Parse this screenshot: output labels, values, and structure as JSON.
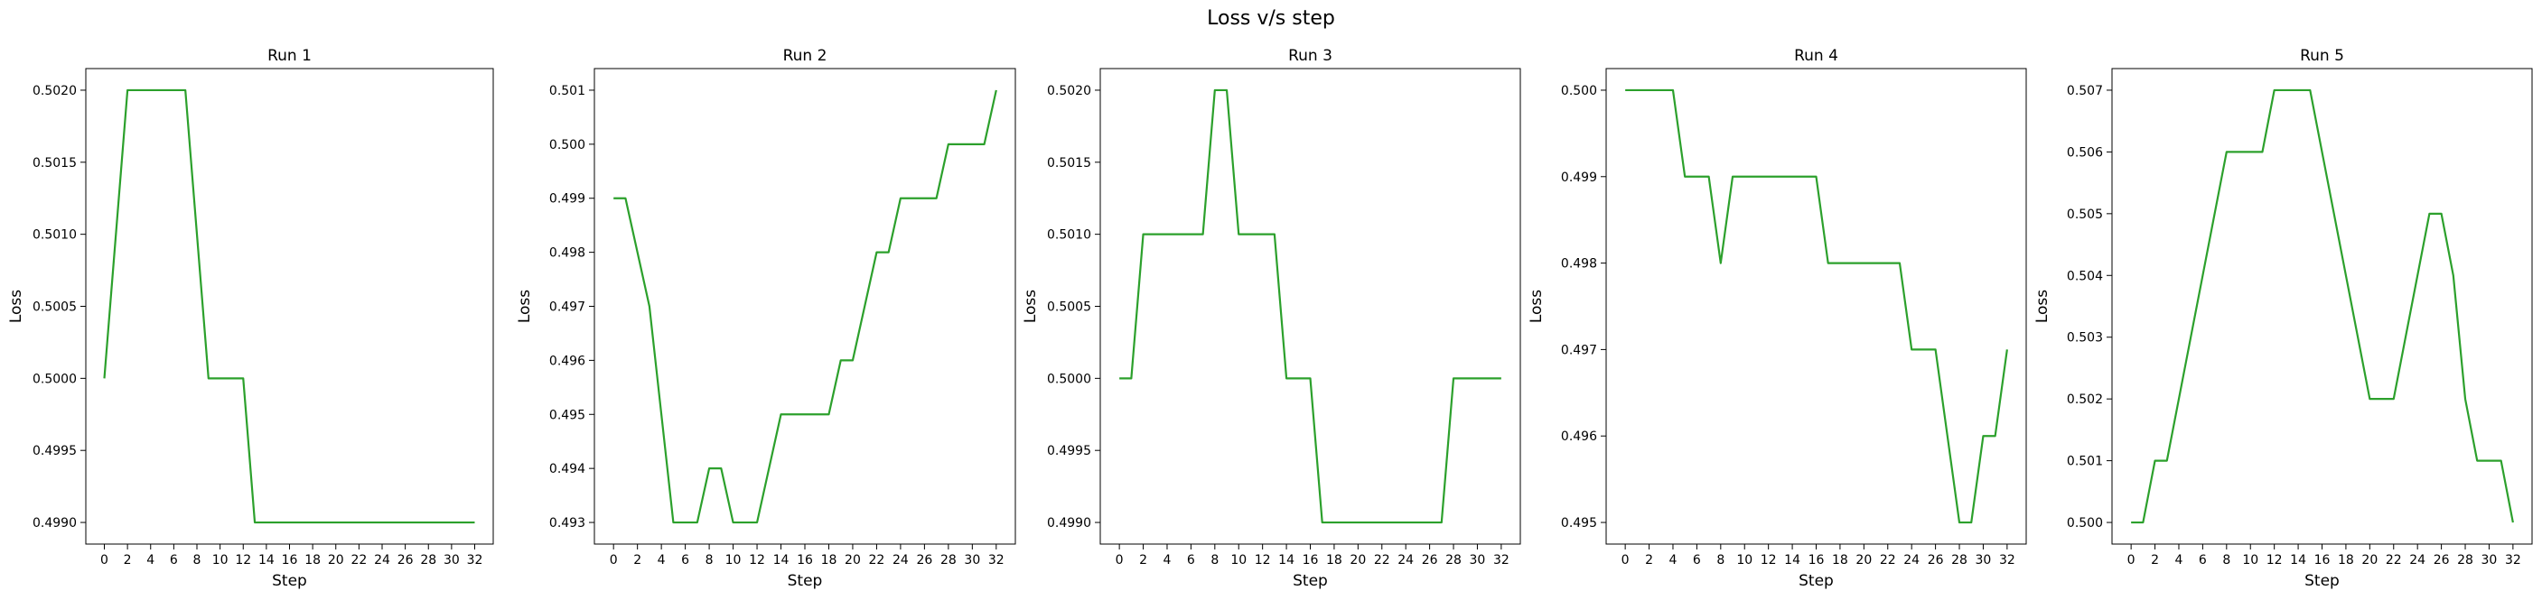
{
  "suptitle": "Loss v/s step",
  "line_color": "#2ca02c",
  "chart_data": [
    {
      "type": "line",
      "title": "Run 1",
      "xlabel": "Step",
      "ylabel": "Loss",
      "xlim": [
        -1.6,
        33.6
      ],
      "ylim": [
        0.49885,
        0.50215
      ],
      "xticks": [
        0,
        2,
        4,
        6,
        8,
        10,
        12,
        14,
        16,
        18,
        20,
        22,
        24,
        26,
        28,
        30,
        32
      ],
      "yticks": [
        0.499,
        0.4995,
        0.5,
        0.5005,
        0.501,
        0.5015,
        0.502
      ],
      "ytick_decimals": 4,
      "grid": false,
      "x": [
        0,
        1,
        2,
        3,
        4,
        5,
        6,
        7,
        8,
        9,
        10,
        11,
        12,
        13,
        14,
        15,
        16,
        17,
        18,
        19,
        20,
        21,
        22,
        23,
        24,
        25,
        26,
        27,
        28,
        29,
        30,
        31,
        32
      ],
      "values": [
        0.5,
        0.501,
        0.502,
        0.502,
        0.502,
        0.502,
        0.502,
        0.502,
        0.501,
        0.5,
        0.5,
        0.5,
        0.5,
        0.499,
        0.499,
        0.499,
        0.499,
        0.499,
        0.499,
        0.499,
        0.499,
        0.499,
        0.499,
        0.499,
        0.499,
        0.499,
        0.499,
        0.499,
        0.499,
        0.499,
        0.499,
        0.499,
        0.499
      ]
    },
    {
      "type": "line",
      "title": "Run 2",
      "xlabel": "Step",
      "ylabel": "Loss",
      "xlim": [
        -1.6,
        33.6
      ],
      "ylim": [
        0.4926,
        0.5014
      ],
      "xticks": [
        0,
        2,
        4,
        6,
        8,
        10,
        12,
        14,
        16,
        18,
        20,
        22,
        24,
        26,
        28,
        30,
        32
      ],
      "yticks": [
        0.493,
        0.494,
        0.495,
        0.496,
        0.497,
        0.498,
        0.499,
        0.5,
        0.501
      ],
      "ytick_decimals": 3,
      "grid": false,
      "x": [
        0,
        1,
        2,
        3,
        4,
        5,
        6,
        7,
        8,
        9,
        10,
        11,
        12,
        13,
        14,
        15,
        16,
        17,
        18,
        19,
        20,
        21,
        22,
        23,
        24,
        25,
        26,
        27,
        28,
        29,
        30,
        31,
        32
      ],
      "values": [
        0.499,
        0.499,
        0.498,
        0.497,
        0.495,
        0.493,
        0.493,
        0.493,
        0.494,
        0.494,
        0.493,
        0.493,
        0.493,
        0.494,
        0.495,
        0.495,
        0.495,
        0.495,
        0.495,
        0.496,
        0.496,
        0.497,
        0.498,
        0.498,
        0.499,
        0.499,
        0.499,
        0.499,
        0.5,
        0.5,
        0.5,
        0.5,
        0.501
      ]
    },
    {
      "type": "line",
      "title": "Run 3",
      "xlabel": "Step",
      "ylabel": "Loss",
      "xlim": [
        -1.6,
        33.6
      ],
      "ylim": [
        0.49885,
        0.50215
      ],
      "xticks": [
        0,
        2,
        4,
        6,
        8,
        10,
        12,
        14,
        16,
        18,
        20,
        22,
        24,
        26,
        28,
        30,
        32
      ],
      "yticks": [
        0.499,
        0.4995,
        0.5,
        0.5005,
        0.501,
        0.5015,
        0.502
      ],
      "ytick_decimals": 4,
      "grid": false,
      "x": [
        0,
        1,
        2,
        3,
        4,
        5,
        6,
        7,
        8,
        9,
        10,
        11,
        12,
        13,
        14,
        15,
        16,
        17,
        18,
        19,
        20,
        21,
        22,
        23,
        24,
        25,
        26,
        27,
        28,
        29,
        30,
        31,
        32
      ],
      "values": [
        0.5,
        0.5,
        0.501,
        0.501,
        0.501,
        0.501,
        0.501,
        0.501,
        0.502,
        0.502,
        0.501,
        0.501,
        0.501,
        0.501,
        0.5,
        0.5,
        0.5,
        0.499,
        0.499,
        0.499,
        0.499,
        0.499,
        0.499,
        0.499,
        0.499,
        0.499,
        0.499,
        0.499,
        0.5,
        0.5,
        0.5,
        0.5,
        0.5
      ]
    },
    {
      "type": "line",
      "title": "Run 4",
      "xlabel": "Step",
      "ylabel": "Loss",
      "xlim": [
        -1.6,
        33.6
      ],
      "ylim": [
        0.49475,
        0.50025
      ],
      "xticks": [
        0,
        2,
        4,
        6,
        8,
        10,
        12,
        14,
        16,
        18,
        20,
        22,
        24,
        26,
        28,
        30,
        32
      ],
      "yticks": [
        0.495,
        0.496,
        0.497,
        0.498,
        0.499,
        0.5
      ],
      "ytick_decimals": 3,
      "grid": false,
      "x": [
        0,
        1,
        2,
        3,
        4,
        5,
        6,
        7,
        8,
        9,
        10,
        11,
        12,
        13,
        14,
        15,
        16,
        17,
        18,
        19,
        20,
        21,
        22,
        23,
        24,
        25,
        26,
        27,
        28,
        29,
        30,
        31,
        32
      ],
      "values": [
        0.5,
        0.5,
        0.5,
        0.5,
        0.5,
        0.499,
        0.499,
        0.499,
        0.498,
        0.499,
        0.499,
        0.499,
        0.499,
        0.499,
        0.499,
        0.499,
        0.499,
        0.498,
        0.498,
        0.498,
        0.498,
        0.498,
        0.498,
        0.498,
        0.497,
        0.497,
        0.497,
        0.496,
        0.495,
        0.495,
        0.496,
        0.496,
        0.497
      ]
    },
    {
      "type": "line",
      "title": "Run 5",
      "xlabel": "Step",
      "ylabel": "Loss",
      "xlim": [
        -1.6,
        33.6
      ],
      "ylim": [
        0.49965,
        0.50735
      ],
      "xticks": [
        0,
        2,
        4,
        6,
        8,
        10,
        12,
        14,
        16,
        18,
        20,
        22,
        24,
        26,
        28,
        30,
        32
      ],
      "yticks": [
        0.5,
        0.501,
        0.502,
        0.503,
        0.504,
        0.505,
        0.506,
        0.507
      ],
      "ytick_decimals": 3,
      "grid": false,
      "x": [
        0,
        1,
        2,
        3,
        4,
        5,
        6,
        7,
        8,
        9,
        10,
        11,
        12,
        13,
        14,
        15,
        16,
        17,
        18,
        19,
        20,
        21,
        22,
        23,
        24,
        25,
        26,
        27,
        28,
        29,
        30,
        31,
        32
      ],
      "values": [
        0.5,
        0.5,
        0.501,
        0.501,
        0.502,
        0.503,
        0.504,
        0.505,
        0.506,
        0.506,
        0.506,
        0.506,
        0.507,
        0.507,
        0.507,
        0.507,
        0.506,
        0.505,
        0.504,
        0.503,
        0.502,
        0.502,
        0.502,
        0.503,
        0.504,
        0.505,
        0.505,
        0.504,
        0.502,
        0.501,
        0.501,
        0.501,
        0.5
      ]
    }
  ]
}
